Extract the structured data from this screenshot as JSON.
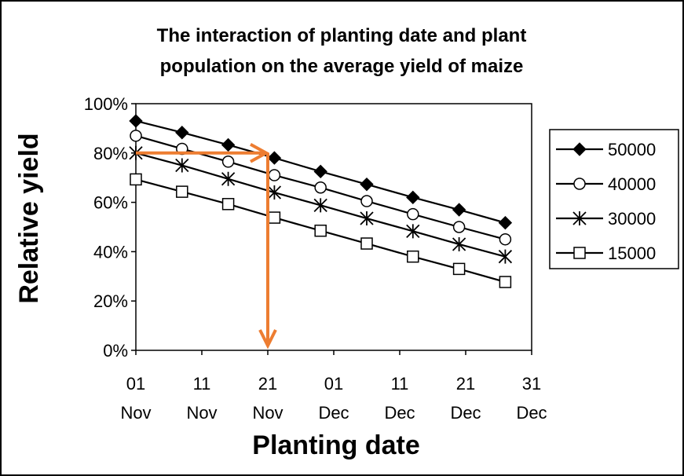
{
  "chart_data": {
    "type": "line",
    "title_lines": [
      "The interaction of planting date and plant",
      "population on the average yield of maize"
    ],
    "xlabel": "Planting date",
    "ylabel": "Relative yield",
    "x_ticks": [
      {
        "day": "01",
        "month": "Nov"
      },
      {
        "day": "11",
        "month": "Nov"
      },
      {
        "day": "21",
        "month": "Nov"
      },
      {
        "day": "01",
        "month": "Dec"
      },
      {
        "day": "11",
        "month": "Dec"
      },
      {
        "day": "21",
        "month": "Dec"
      },
      {
        "day": "31",
        "month": "Dec"
      }
    ],
    "y_ticks": [
      "0%",
      "20%",
      "40%",
      "60%",
      "80%",
      "100%"
    ],
    "ylim": [
      0,
      100
    ],
    "xlim": [
      "01 Nov",
      "31 Dec"
    ],
    "x": [
      "01 Nov",
      "08 Nov",
      "15 Nov",
      "22 Nov",
      "29 Nov",
      "06 Dec",
      "13 Dec",
      "20 Dec",
      "27 Dec"
    ],
    "series": [
      {
        "name": "50000",
        "marker": "filled-diamond",
        "values": [
          93,
          88.3,
          83.3,
          78,
          72.5,
          67.3,
          62,
          57,
          51.7
        ]
      },
      {
        "name": "40000",
        "marker": "open-circle",
        "values": [
          87,
          81.7,
          76.5,
          71,
          66,
          60.5,
          55.2,
          50,
          45
        ]
      },
      {
        "name": "30000",
        "marker": "asterisk",
        "values": [
          80,
          75,
          69.5,
          64,
          58.8,
          53.5,
          48.3,
          43,
          38
        ]
      },
      {
        "name": "15000",
        "marker": "open-square",
        "values": [
          69.3,
          64.3,
          59.3,
          53.8,
          48.5,
          43.3,
          38,
          33,
          27.7
        ]
      }
    ],
    "annotation": {
      "type": "arrow-lookup",
      "y": 80,
      "x": "21 Nov",
      "color": "#ED7D31"
    },
    "grid": false,
    "legend_position": "right"
  }
}
